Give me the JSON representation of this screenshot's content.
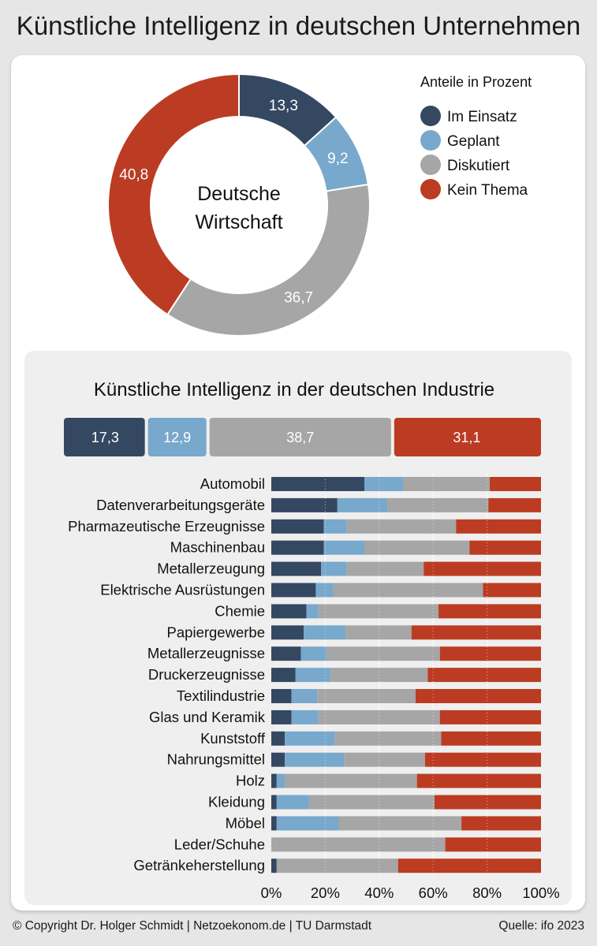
{
  "title": "Künstliche Intelligenz in deutschen Unternehmen",
  "footer": {
    "copyright": "© Copyright Dr. Holger Schmidt | Netzoekonom.de | TU Darmstadt",
    "source": "Quelle: ifo 2023"
  },
  "colors": {
    "im_einsatz": "#354862",
    "geplant": "#78a8cc",
    "diskutiert": "#a6a6a6",
    "kein_thema": "#bb3c23"
  },
  "chart_data": [
    {
      "type": "pie",
      "donut": true,
      "center_label": "Deutsche Wirtschaft",
      "legend_title": "Anteile in Prozent",
      "legend_position": "top-right",
      "slices": [
        {
          "name": "Im Einsatz",
          "value": 13.3,
          "label": "13,3"
        },
        {
          "name": "Geplant",
          "value": 9.2,
          "label": "9,2"
        },
        {
          "name": "Diskutiert",
          "value": 36.7,
          "label": "36,7"
        },
        {
          "name": "Kein Thema",
          "value": 40.8,
          "label": "40,8"
        }
      ]
    },
    {
      "type": "bar",
      "stacked": true,
      "orientation": "horizontal",
      "title": "Künstliche Intelligenz in der deutschen Industrie",
      "total": {
        "values": [
          17.3,
          12.9,
          38.7,
          31.1
        ],
        "labels": [
          "17,3",
          "12,9",
          "38,7",
          "31,1"
        ]
      },
      "series_names": [
        "Im Einsatz",
        "Geplant",
        "Diskutiert",
        "Kein Thema"
      ],
      "categories": [
        "Automobil",
        "Datenverarbeitungsgeräte",
        "Pharmazeutische Erzeugnisse",
        "Maschinenbau",
        "Metallerzeugung",
        "Elektrische Ausrüstungen",
        "Chemie",
        "Papiergewerbe",
        "Metallerzeugnisse",
        "Druckerzeugnisse",
        "Textilindustrie",
        "Glas und Keramik",
        "Kunststoff",
        "Nahrungsmittel",
        "Holz",
        "Kleidung",
        "Möbel",
        "Leder/Schuhe",
        "Getränkeherstellung"
      ],
      "values": [
        [
          34.5,
          14.5,
          32,
          19
        ],
        [
          24.5,
          18.5,
          37.5,
          19.5
        ],
        [
          19.5,
          8.5,
          40.5,
          31.5
        ],
        [
          19.5,
          15,
          39,
          26.5
        ],
        [
          18.5,
          9.5,
          28.5,
          43.5
        ],
        [
          16.5,
          6.5,
          55.5,
          21.5
        ],
        [
          13,
          4.5,
          44.5,
          38
        ],
        [
          12,
          15.5,
          24.5,
          48
        ],
        [
          11,
          9.5,
          42,
          37.5
        ],
        [
          9,
          13,
          36,
          42
        ],
        [
          7.5,
          9.5,
          36.5,
          46.5
        ],
        [
          7.5,
          10,
          45,
          37.5
        ],
        [
          5,
          18.5,
          39.5,
          37
        ],
        [
          5,
          22,
          30,
          43
        ],
        [
          2,
          3,
          49,
          46
        ],
        [
          2,
          12,
          46.5,
          39.5
        ],
        [
          2,
          23,
          45.5,
          29.5
        ],
        [
          0,
          0,
          64.5,
          35.5
        ],
        [
          2,
          0,
          45,
          53
        ]
      ],
      "xlim": [
        0,
        100
      ],
      "x_ticks": [
        "0%",
        "20%",
        "40%",
        "60%",
        "80%",
        "100%"
      ]
    }
  ]
}
